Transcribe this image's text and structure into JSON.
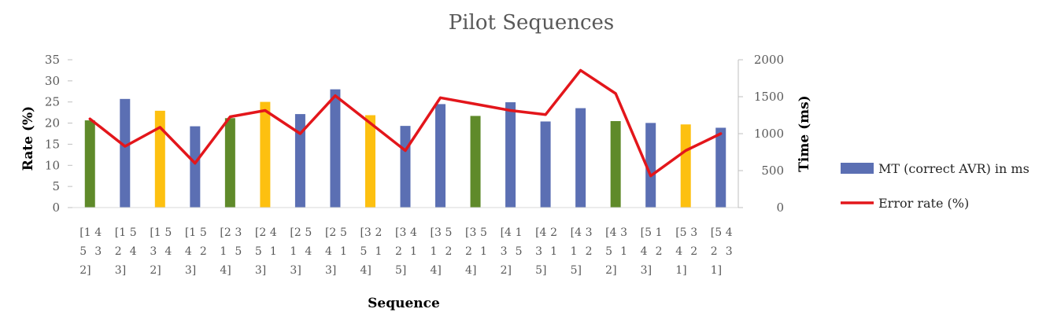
{
  "chart_data": {
    "type": "bar",
    "title": "Pilot Sequences",
    "xlabel": "Sequence",
    "ylabel_left": "Rate (%)",
    "ylabel_right": "Time (ms)",
    "ylim_left": [
      0,
      35
    ],
    "yticks_left": [
      0,
      5,
      10,
      15,
      20,
      25,
      30,
      35
    ],
    "ylim_right": [
      0,
      2000
    ],
    "yticks_right": [
      0,
      500,
      1000,
      1500,
      2000
    ],
    "grid": false,
    "legend_position": "right",
    "categories": [
      [
        "[1",
        "5",
        "2]",
        "4",
        "3"
      ],
      [
        "[1",
        "2",
        "3]",
        "5",
        "4"
      ],
      [
        "[1",
        "3",
        "2]",
        "5",
        "4"
      ],
      [
        "[1",
        "4",
        "3]",
        "5",
        "2"
      ],
      [
        "[2",
        "1",
        "4]",
        "3",
        "5"
      ],
      [
        "[2",
        "5",
        "3]",
        "4",
        "1"
      ],
      [
        "[2",
        "1",
        "3]",
        "5",
        "4"
      ],
      [
        "[2",
        "4",
        "3]",
        "5",
        "1"
      ],
      [
        "[3",
        "5",
        "4]",
        "2",
        "1"
      ],
      [
        "[3",
        "2",
        "5]",
        "4",
        "1"
      ],
      [
        "[3",
        "1",
        "4]",
        "5",
        "2"
      ],
      [
        "[3",
        "2",
        "4]",
        "5",
        "1"
      ],
      [
        "[4",
        "3",
        "2]",
        "1",
        "5"
      ],
      [
        "[4",
        "3",
        "5]",
        "2",
        "1"
      ],
      [
        "[4",
        "1",
        "5]",
        "3",
        "2"
      ],
      [
        "[4",
        "5",
        "2]",
        "3",
        "1"
      ],
      [
        "[5",
        "4",
        "3]",
        "1",
        "2"
      ],
      [
        "[5",
        "4",
        "1]",
        "3",
        "2"
      ],
      [
        "[5",
        "2",
        "1]",
        "4",
        "3"
      ]
    ],
    "series": [
      {
        "name": "MT (correct AVR) in ms",
        "type": "bar",
        "axis": "right",
        "color": "#5b6fb3",
        "values": [
          1180,
          1470,
          1310,
          1100,
          1210,
          1430,
          1265,
          1600,
          1250,
          1105,
          1400,
          1240,
          1425,
          1165,
          1345,
          1170,
          1145,
          1125,
          1080
        ],
        "bar_colors": [
          "#5f8a2a",
          "#5b6fb3",
          "#fdc010",
          "#5b6fb3",
          "#5f8a2a",
          "#fdc010",
          "#5b6fb3",
          "#5b6fb3",
          "#fdc010",
          "#5b6fb3",
          "#5b6fb3",
          "#5f8a2a",
          "#5b6fb3",
          "#5b6fb3",
          "#5b6fb3",
          "#5f8a2a",
          "#5b6fb3",
          "#fdc010",
          "#5b6fb3"
        ]
      },
      {
        "name": "Error rate (%)",
        "type": "line",
        "axis": "left",
        "color": "#e3161b",
        "values": [
          21,
          14.5,
          19,
          10.5,
          21.5,
          23,
          17.5,
          26.5,
          20,
          13.5,
          26,
          24.5,
          23,
          22,
          32.5,
          27,
          7.5,
          13.5,
          17.5
        ]
      }
    ]
  }
}
